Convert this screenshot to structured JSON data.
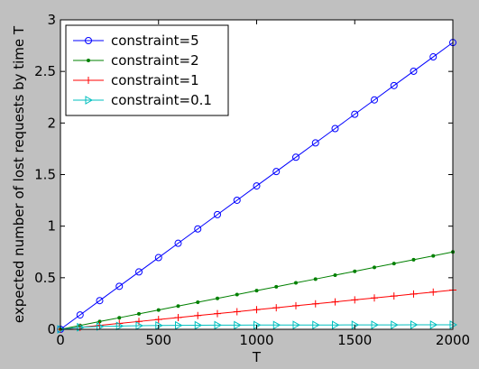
{
  "chart_data": {
    "type": "line",
    "title": "",
    "xlabel": "T",
    "ylabel": "expected number of lost requests by time T",
    "xlim": [
      0,
      2000
    ],
    "ylim": [
      0,
      3
    ],
    "x_ticks": [
      0,
      500,
      1000,
      1500,
      2000
    ],
    "y_ticks": [
      0,
      0.5,
      1,
      1.5,
      2,
      2.5,
      3
    ],
    "x_tick_labels": [
      "0",
      "500",
      "1000",
      "1500",
      "2000"
    ],
    "y_tick_labels": [
      "0",
      "0.5",
      "1",
      "1.5",
      "2",
      "2.5",
      "3"
    ],
    "grid": false,
    "legend_position": "top-left",
    "x": [
      0,
      100,
      200,
      300,
      400,
      500,
      600,
      700,
      800,
      900,
      1000,
      1100,
      1200,
      1300,
      1400,
      1500,
      1600,
      1700,
      1800,
      1900,
      2000
    ],
    "series": [
      {
        "name": "constraint=5",
        "color": "#0000ff",
        "marker": "circle",
        "values": [
          0,
          0.139,
          0.278,
          0.417,
          0.556,
          0.695,
          0.834,
          0.973,
          1.112,
          1.251,
          1.39,
          1.529,
          1.668,
          1.807,
          1.946,
          2.085,
          2.224,
          2.363,
          2.502,
          2.641,
          2.78
        ]
      },
      {
        "name": "constraint=2",
        "color": "#008000",
        "marker": "dot",
        "values": [
          0,
          0.037,
          0.075,
          0.112,
          0.15,
          0.187,
          0.225,
          0.262,
          0.3,
          0.337,
          0.375,
          0.412,
          0.45,
          0.487,
          0.525,
          0.562,
          0.6,
          0.637,
          0.675,
          0.712,
          0.75
        ]
      },
      {
        "name": "constraint=1",
        "color": "#ff0000",
        "marker": "plus",
        "values": [
          0,
          0.019,
          0.038,
          0.057,
          0.076,
          0.095,
          0.114,
          0.133,
          0.152,
          0.171,
          0.19,
          0.209,
          0.228,
          0.247,
          0.266,
          0.285,
          0.304,
          0.323,
          0.342,
          0.361,
          0.38
        ]
      },
      {
        "name": "constraint=0.1",
        "color": "#00bfbf",
        "marker": "triangle-right",
        "values": [
          0,
          0.02,
          0.027,
          0.032,
          0.035,
          0.037,
          0.038,
          0.039,
          0.04,
          0.04,
          0.041,
          0.041,
          0.042,
          0.042,
          0.042,
          0.043,
          0.043,
          0.043,
          0.044,
          0.044,
          0.044
        ]
      }
    ]
  }
}
